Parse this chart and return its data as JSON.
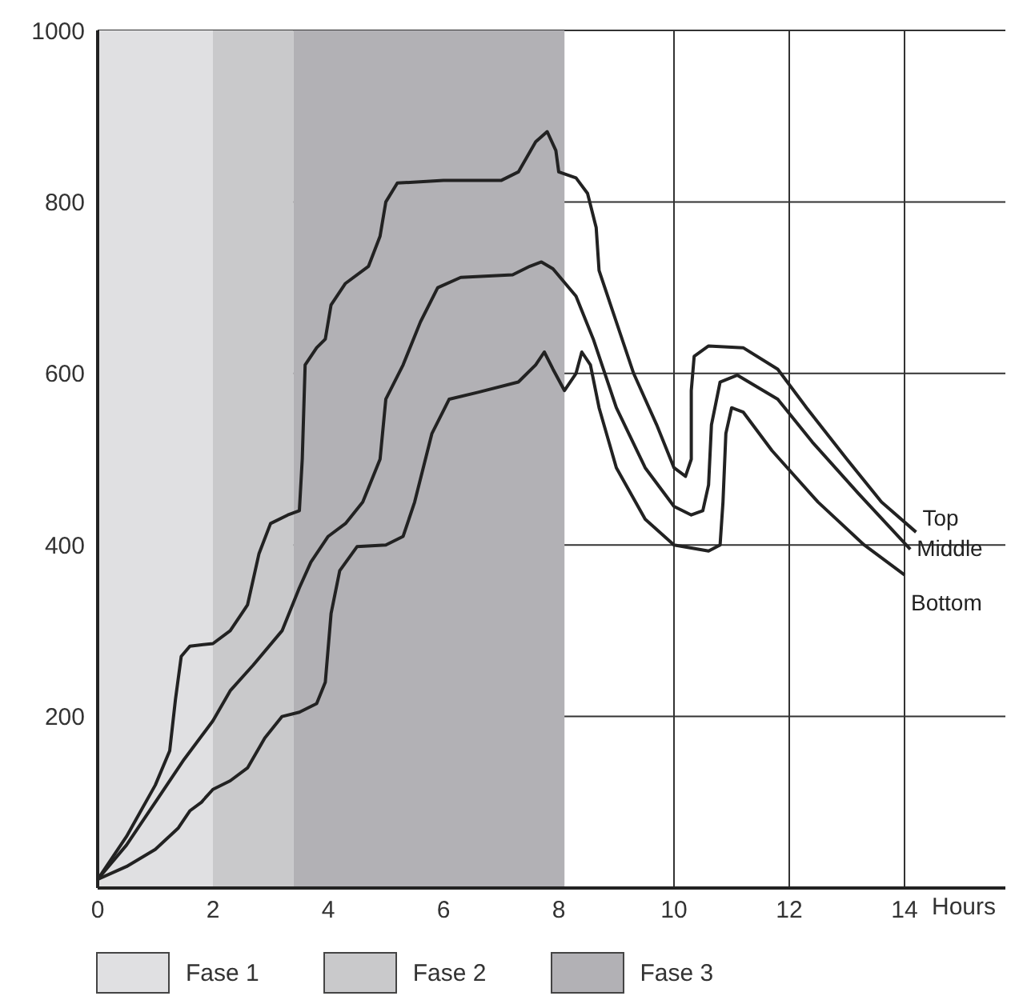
{
  "chart_data": {
    "type": "line",
    "xlabel": "Hours",
    "xlim": [
      0,
      15.75
    ],
    "xticks": [
      0,
      2,
      4,
      6,
      8,
      10,
      12,
      14
    ],
    "ylim": [
      0,
      1000
    ],
    "yticks": [
      200,
      400,
      600,
      800,
      1000
    ],
    "grid": true,
    "legend": "bottom",
    "bands": [
      {
        "axis": "x",
        "from": 0,
        "to": 2,
        "label": "Fase 1",
        "color": "#e0e0e2"
      },
      {
        "axis": "x",
        "from": 2,
        "to": 3.4,
        "label": "Fase 2",
        "color": "#c9c9cb"
      },
      {
        "axis": "x",
        "from": 3.4,
        "to": 8.1,
        "label": "Fase 3",
        "color": "#b2b1b5"
      }
    ],
    "series": [
      {
        "name": "Top",
        "color": "#222222",
        "x": [
          0,
          0.5,
          1,
          1.25,
          1.35,
          1.45,
          1.6,
          2,
          2.3,
          2.6,
          2.8,
          3,
          3.3,
          3.5,
          3.55,
          3.6,
          3.8,
          3.95,
          4.05,
          4.3,
          4.7,
          4.9,
          5,
          5.2,
          6,
          7,
          7.3,
          7.6,
          7.8,
          7.95,
          8,
          8.3,
          8.5,
          8.65,
          8.7,
          8.9,
          9.3,
          9.7,
          10,
          10.2,
          10.3,
          10.3,
          10.35,
          10.6,
          11.2,
          11.8,
          12.3,
          13,
          13.6,
          14.2
        ],
        "values": [
          10,
          60,
          120,
          160,
          220,
          270,
          282,
          285,
          300,
          330,
          390,
          425,
          435,
          440,
          500,
          610,
          630,
          640,
          680,
          705,
          725,
          760,
          800,
          822,
          825,
          825,
          835,
          870,
          882,
          860,
          835,
          828,
          810,
          770,
          720,
          680,
          600,
          540,
          490,
          480,
          500,
          580,
          620,
          632,
          630,
          605,
          560,
          500,
          450,
          415
        ]
      },
      {
        "name": "Middle",
        "color": "#222222",
        "x": [
          0,
          0.5,
          1,
          1.5,
          2,
          2.3,
          2.7,
          3.2,
          3.5,
          3.7,
          4,
          4.3,
          4.6,
          4.9,
          5,
          5.3,
          5.6,
          5.9,
          6.3,
          7.2,
          7.5,
          7.7,
          7.9,
          8.3,
          8.6,
          9,
          9.5,
          10,
          10.3,
          10.5,
          10.6,
          10.65,
          10.8,
          11.1,
          11.8,
          12.4,
          13.2,
          14.1
        ],
        "values": [
          10,
          50,
          100,
          150,
          195,
          230,
          260,
          300,
          350,
          380,
          410,
          425,
          450,
          500,
          570,
          610,
          660,
          700,
          712,
          715,
          725,
          730,
          722,
          690,
          640,
          560,
          490,
          445,
          435,
          440,
          470,
          540,
          590,
          598,
          570,
          520,
          460,
          395
        ]
      },
      {
        "name": "Bottom",
        "color": "#222222",
        "x": [
          0,
          0.5,
          1,
          1.4,
          1.6,
          1.8,
          2,
          2.3,
          2.6,
          2.9,
          3.2,
          3.5,
          3.8,
          3.95,
          4.05,
          4.2,
          4.5,
          5,
          5.3,
          5.5,
          5.8,
          6.1,
          6.6,
          7.3,
          7.6,
          7.75,
          7.9,
          8.1,
          8.3,
          8.4,
          8.55,
          8.7,
          9,
          9.5,
          10,
          10.6,
          10.8,
          10.85,
          10.9,
          11,
          11.2,
          11.7,
          12.5,
          13.3,
          14
        ],
        "values": [
          10,
          25,
          45,
          70,
          90,
          100,
          115,
          125,
          140,
          175,
          200,
          205,
          215,
          240,
          320,
          370,
          398,
          400,
          410,
          450,
          530,
          570,
          578,
          590,
          610,
          625,
          605,
          580,
          600,
          625,
          610,
          560,
          490,
          430,
          400,
          393,
          400,
          450,
          530,
          560,
          555,
          510,
          450,
          400,
          365
        ]
      }
    ]
  }
}
